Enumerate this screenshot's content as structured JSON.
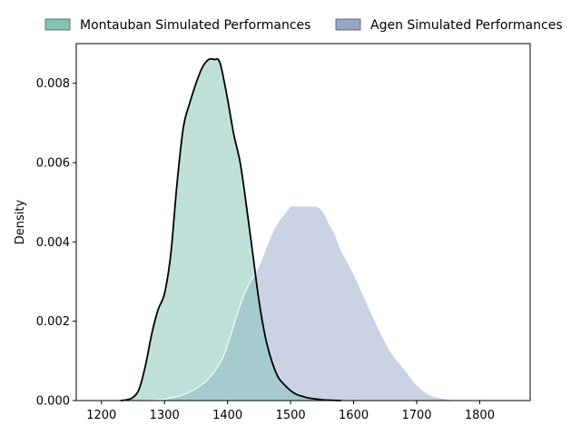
{
  "chart_data": {
    "type": "area",
    "title": "",
    "xlabel": "",
    "ylabel": "Density",
    "xlim": [
      1160,
      1880
    ],
    "ylim": [
      0,
      0.009
    ],
    "xticks": [
      1200,
      1300,
      1400,
      1500,
      1600,
      1700,
      1800
    ],
    "yticks": [
      0.0,
      0.002,
      0.004,
      0.006,
      0.008
    ],
    "ytick_labels": [
      "0.000",
      "0.002",
      "0.004",
      "0.006",
      "0.008"
    ],
    "grid": false,
    "legend_position": "top, outside plot",
    "series": [
      {
        "name": "Montauban Simulated Performances",
        "fill_color": "#82c3b3",
        "fill_opacity": 0.5,
        "line_color": "#000000",
        "x": [
          1230,
          1240,
          1250,
          1260,
          1270,
          1280,
          1290,
          1300,
          1310,
          1320,
          1330,
          1340,
          1350,
          1360,
          1370,
          1380,
          1385,
          1390,
          1400,
          1410,
          1420,
          1430,
          1440,
          1450,
          1460,
          1470,
          1480,
          1490,
          1500,
          1510,
          1520,
          1530,
          1540,
          1550,
          1560,
          1580
        ],
        "y": [
          0.0,
          2e-05,
          8e-05,
          0.0003,
          0.0009,
          0.0017,
          0.0023,
          0.0027,
          0.0037,
          0.0055,
          0.0069,
          0.0075,
          0.008,
          0.0084,
          0.0086,
          0.0086,
          0.0086,
          0.0084,
          0.0076,
          0.0067,
          0.006,
          0.0049,
          0.0037,
          0.0025,
          0.0016,
          0.001,
          0.0006,
          0.0004,
          0.00025,
          0.00015,
          0.0001,
          6e-05,
          4e-05,
          2e-05,
          1e-05,
          0.0
        ]
      },
      {
        "name": "Agen Simulated Performances",
        "fill_color": "#97a5c9",
        "fill_opacity": 0.5,
        "line_color": "#ffffff",
        "x": [
          1270,
          1290,
          1310,
          1330,
          1350,
          1370,
          1390,
          1400,
          1410,
          1420,
          1430,
          1440,
          1450,
          1460,
          1470,
          1480,
          1490,
          1500,
          1510,
          1520,
          1530,
          1540,
          1550,
          1560,
          1570,
          1580,
          1590,
          1600,
          1620,
          1640,
          1660,
          1680,
          1700,
          1720,
          1740,
          1760,
          1780,
          1800
        ],
        "y": [
          0.0,
          2e-05,
          6e-05,
          0.00015,
          0.0003,
          0.00055,
          0.001,
          0.0014,
          0.0019,
          0.0024,
          0.0028,
          0.0031,
          0.0034,
          0.0038,
          0.0042,
          0.0045,
          0.0047,
          0.0049,
          0.0049,
          0.0049,
          0.0049,
          0.0049,
          0.0048,
          0.0045,
          0.0042,
          0.0038,
          0.0035,
          0.0032,
          0.0025,
          0.0018,
          0.0012,
          0.0008,
          0.0004,
          0.00015,
          6e-05,
          2e-05,
          1e-05,
          0.0
        ]
      }
    ]
  }
}
